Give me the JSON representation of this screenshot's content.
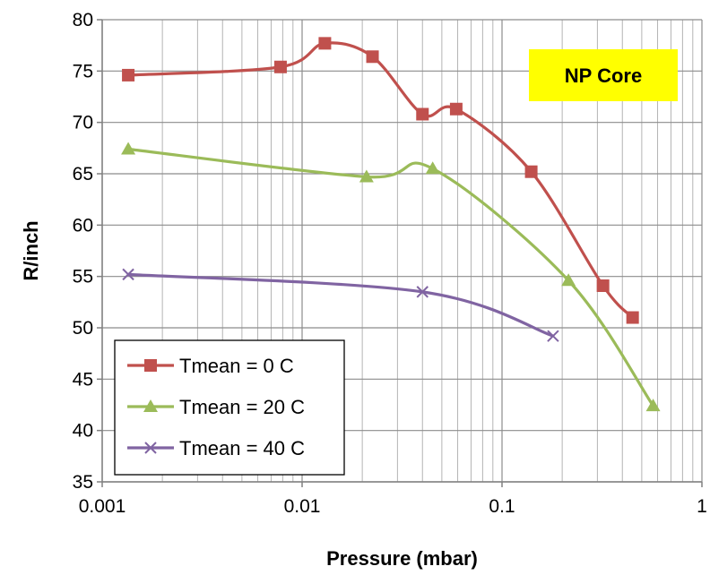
{
  "chart_data": {
    "type": "line",
    "xlabel": "Pressure (mbar)",
    "ylabel": "R/inch",
    "x_scale": "log",
    "xlim": [
      0.001,
      1
    ],
    "ylim": [
      35,
      80
    ],
    "x_ticks": [
      "0.001",
      "0.01",
      "0.1",
      "1"
    ],
    "y_ticks": [
      "35",
      "40",
      "45",
      "50",
      "55",
      "60",
      "65",
      "70",
      "75",
      "80"
    ],
    "grid": true,
    "legend_position": "bottom-left",
    "annotation": {
      "text": "NP Core",
      "background": "#ffff00"
    },
    "series": [
      {
        "name": "Tmean = 0 C",
        "color": "#c0504d",
        "marker": "square",
        "x": [
          0.00135,
          0.0078,
          0.013,
          0.0225,
          0.04,
          0.059,
          0.14,
          0.32,
          0.45
        ],
        "y": [
          74.6,
          75.4,
          77.7,
          76.4,
          70.8,
          71.3,
          65.2,
          54.1,
          51.0
        ]
      },
      {
        "name": "Tmean = 20 C",
        "color": "#9bbb59",
        "marker": "triangle",
        "x": [
          0.00135,
          0.021,
          0.045,
          0.215,
          0.57
        ],
        "y": [
          67.4,
          64.7,
          65.5,
          54.6,
          42.4
        ]
      },
      {
        "name": "Tmean = 40 C",
        "color": "#8064a2",
        "marker": "x",
        "x": [
          0.00135,
          0.04,
          0.18
        ],
        "y": [
          55.2,
          53.5,
          49.2
        ]
      }
    ]
  }
}
